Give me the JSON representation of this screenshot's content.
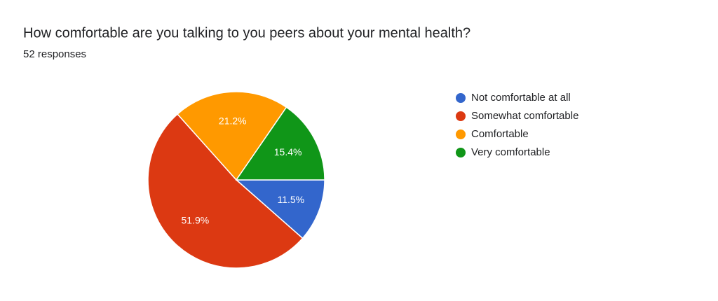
{
  "chart_data": {
    "type": "pie",
    "title": "How comfortable are you talking to you peers about your mental health?",
    "subtitle": "52 responses",
    "categories": [
      "Not comfortable at all",
      "Somewhat comfortable",
      "Comfortable",
      "Very comfortable"
    ],
    "values": [
      11.5,
      51.9,
      21.2,
      15.4
    ],
    "value_labels": [
      "11.5%",
      "51.9%",
      "21.2%",
      "15.4%"
    ],
    "colors": [
      "#3366cc",
      "#dc3912",
      "#ff9900",
      "#109618"
    ],
    "legend": "right"
  }
}
